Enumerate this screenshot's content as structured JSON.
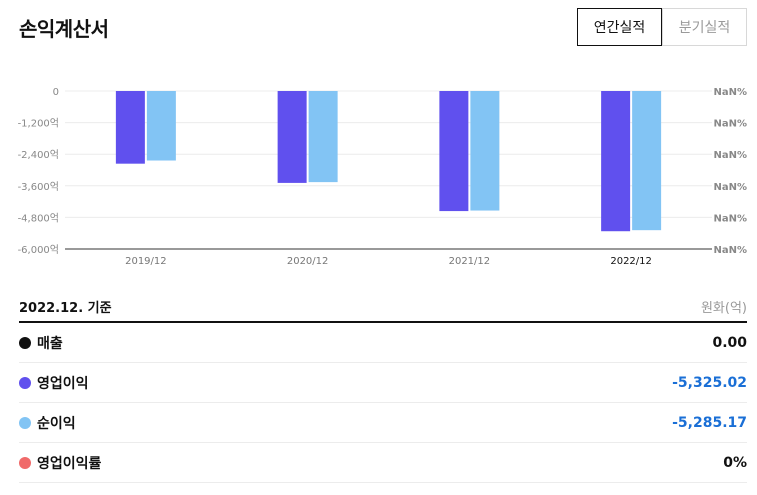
{
  "header": {
    "title": "손익계산서",
    "tabs": [
      {
        "label": "연간실적",
        "active": true
      },
      {
        "label": "분기실적",
        "active": false
      }
    ]
  },
  "colors": {
    "operating_income": "#6050EE",
    "net_income": "#82C4F4",
    "revenue": "#111111",
    "operating_margin": "#F06A6A",
    "negative_value": "#1A6FD6"
  },
  "chart_data": {
    "type": "bar",
    "categories": [
      "2019/12",
      "2020/12",
      "2021/12",
      "2022/12"
    ],
    "selected_category": "2022/12",
    "series": [
      {
        "name": "영업이익",
        "values": [
          -2760,
          -3490,
          -4560,
          -5325.02
        ]
      },
      {
        "name": "순이익",
        "values": [
          -2640,
          -3460,
          -4540,
          -5285.17
        ]
      }
    ],
    "y_axis": {
      "ylim": [
        -6000,
        0
      ],
      "ticks": [
        "0",
        "-1,200억",
        "-2,400억",
        "-3,600억",
        "-4,800억",
        "-6,000억"
      ],
      "tick_values": [
        0,
        -1200,
        -2400,
        -3600,
        -4800,
        -6000
      ]
    },
    "y2_axis": {
      "ticks": [
        "NaN%",
        "NaN%",
        "NaN%",
        "NaN%",
        "NaN%",
        "NaN%"
      ]
    },
    "grid": true
  },
  "summary": {
    "basis": "2022.12. 기준",
    "unit": "원화(억)",
    "rows": [
      {
        "label": "매출",
        "value": "0.00"
      },
      {
        "label": "영업이익",
        "value": "-5,325.02"
      },
      {
        "label": "순이익",
        "value": "-5,285.17"
      },
      {
        "label": "영업이익률",
        "value": "0%"
      }
    ]
  }
}
